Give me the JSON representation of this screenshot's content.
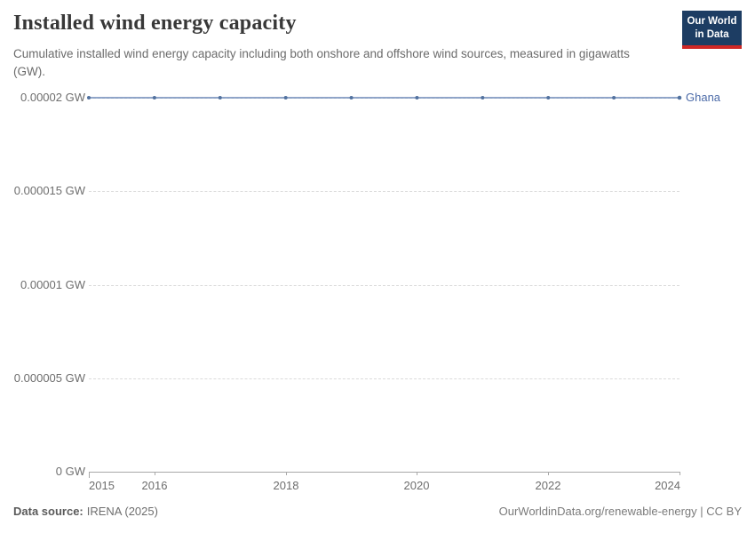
{
  "header": {
    "title": "Installed wind energy capacity",
    "subtitle": "Cumulative installed wind energy capacity including both onshore and offshore wind sources, measured in gigawatts (GW)."
  },
  "logo": {
    "line1": "Our World",
    "line2": "in Data",
    "bg_color": "#1d3d63",
    "accent_color": "#cf2725"
  },
  "chart_data": {
    "type": "line",
    "title": "Installed wind energy capacity",
    "unit": "GW",
    "x": [
      2015,
      2016,
      2017,
      2018,
      2019,
      2020,
      2021,
      2022,
      2023,
      2024
    ],
    "series": [
      {
        "name": "Ghana",
        "color": "#6d89b8",
        "point_color": "#52729f",
        "label_color": "#4c6ba8",
        "values": [
          2e-05,
          2e-05,
          2e-05,
          2e-05,
          2e-05,
          2e-05,
          2e-05,
          2e-05,
          2e-05,
          2e-05
        ]
      }
    ],
    "xlim": [
      2015,
      2024
    ],
    "ylim": [
      0,
      2e-05
    ],
    "y_ticks": [
      {
        "value": 0,
        "label": "0 GW"
      },
      {
        "value": 5e-06,
        "label": "0.000005 GW"
      },
      {
        "value": 1e-05,
        "label": "0.00001 GW"
      },
      {
        "value": 1.5e-05,
        "label": "0.000015 GW"
      },
      {
        "value": 2e-05,
        "label": "0.00002 GW"
      }
    ],
    "x_ticks": [
      2015,
      2016,
      2018,
      2020,
      2022,
      2024
    ],
    "grid": "horizontal-dashed",
    "legend_position": "end-of-line"
  },
  "footer": {
    "source_label": "Data source:",
    "source_value": "IRENA (2025)",
    "credit": "OurWorldinData.org/renewable-energy | CC BY"
  }
}
